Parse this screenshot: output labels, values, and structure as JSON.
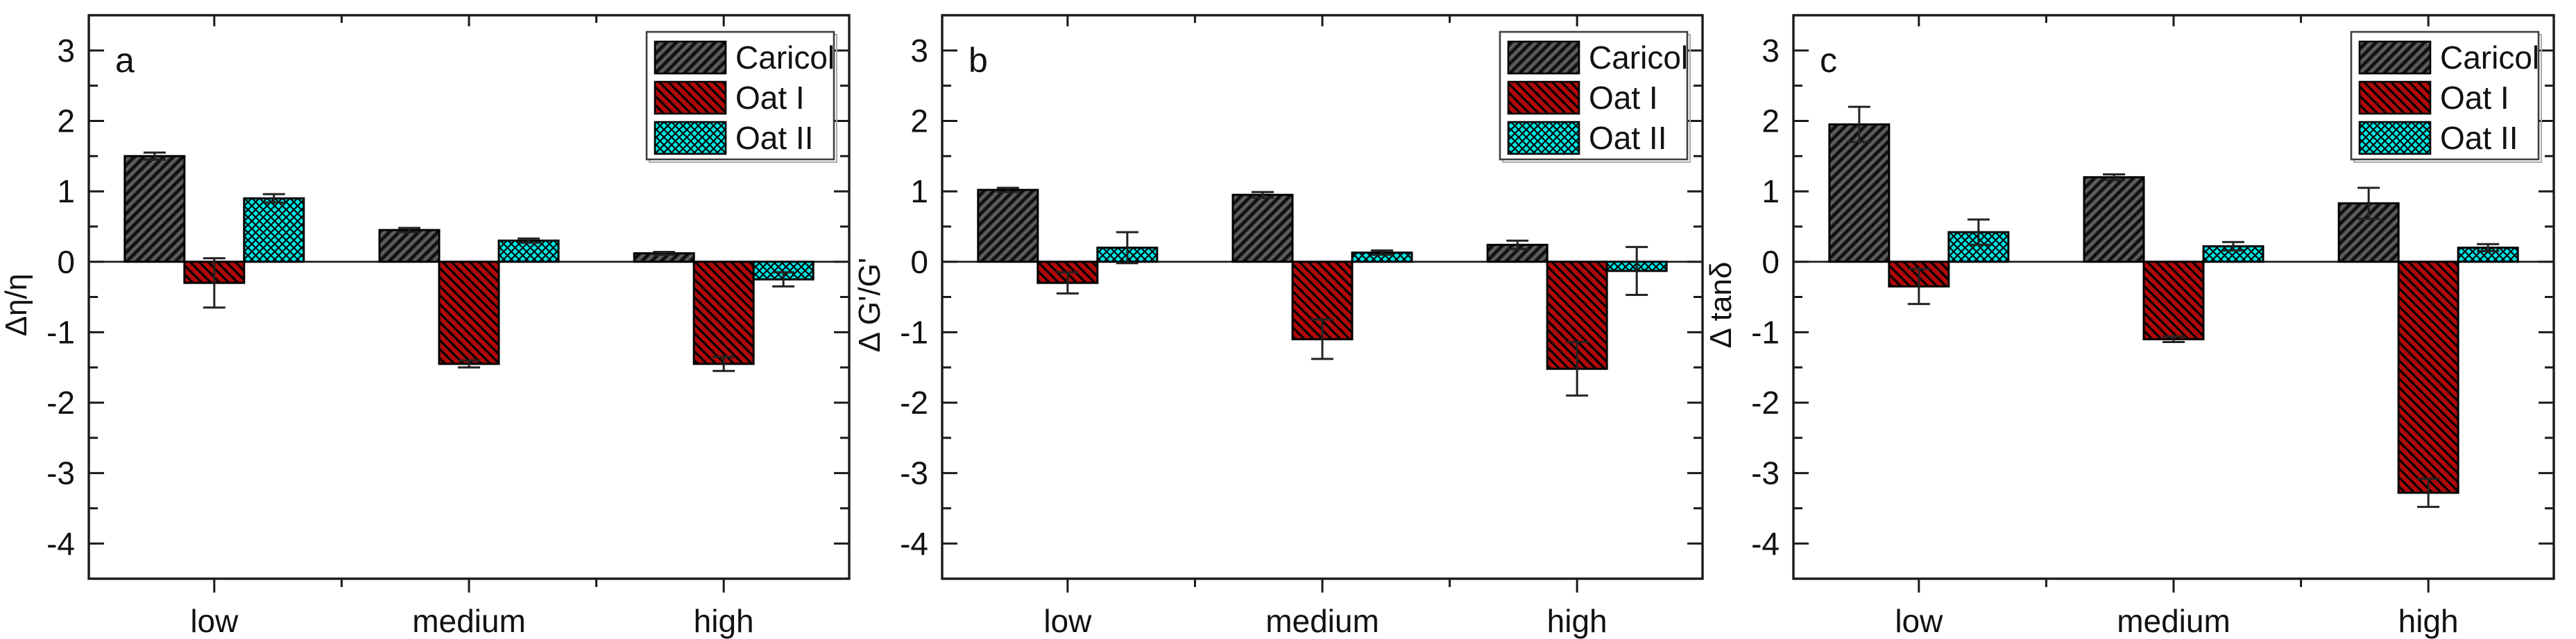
{
  "figure": {
    "background": "#ffffff",
    "description": "Three-panel grouped bar chart comparing Caricol, Oat I and Oat II at low, medium and high levels"
  },
  "series_styles": [
    {
      "name": "Caricol",
      "fill": "#3f3f3f",
      "hatch": "/",
      "pattern": "pat-caricol"
    },
    {
      "name": "Oat I",
      "fill": "#b00909",
      "hatch": "\\",
      "pattern": "pat-oat1"
    },
    {
      "name": "Oat II",
      "fill": "#00e6e6",
      "hatch": "x",
      "pattern": "pat-oat2"
    }
  ],
  "axis_color": "#1a1a1a",
  "error_bar_color": "#222222",
  "chart_data": [
    {
      "type": "bar",
      "panel_label": "a",
      "ylabel": "Δη/η",
      "categories": [
        "low",
        "medium",
        "high"
      ],
      "series": [
        {
          "name": "Caricol",
          "values": [
            1.5,
            0.45,
            0.12
          ],
          "errors": [
            0.05,
            0.03,
            0.02
          ]
        },
        {
          "name": "Oat I",
          "values": [
            -0.3,
            -1.45,
            -1.45
          ],
          "errors": [
            0.35,
            0.05,
            0.1
          ]
        },
        {
          "name": "Oat II",
          "values": [
            0.9,
            0.3,
            -0.25
          ],
          "errors": [
            0.06,
            0.03,
            0.1
          ]
        }
      ],
      "ylim": [
        -4.5,
        3.5
      ],
      "yticks": [
        3,
        2,
        1,
        0,
        -1,
        -2,
        -3,
        -4
      ],
      "grid": false,
      "legend": [
        "Caricol",
        "Oat I",
        "Oat II"
      ],
      "legend_position": "top-right"
    },
    {
      "type": "bar",
      "panel_label": "b",
      "ylabel": "Δ G'/G'",
      "categories": [
        "low",
        "medium",
        "high"
      ],
      "series": [
        {
          "name": "Caricol",
          "values": [
            1.02,
            0.95,
            0.24
          ],
          "errors": [
            0.03,
            0.04,
            0.06
          ]
        },
        {
          "name": "Oat I",
          "values": [
            -0.3,
            -1.1,
            -1.52
          ],
          "errors": [
            0.15,
            0.28,
            0.38
          ]
        },
        {
          "name": "Oat II",
          "values": [
            0.2,
            0.13,
            -0.13
          ],
          "errors": [
            0.22,
            0.03,
            0.34
          ]
        }
      ],
      "ylim": [
        -4.5,
        3.5
      ],
      "yticks": [
        3,
        2,
        1,
        0,
        -1,
        -2,
        -3,
        -4
      ],
      "grid": false,
      "legend": [
        "Caricol",
        "Oat I",
        "Oat II"
      ],
      "legend_position": "top-right"
    },
    {
      "type": "bar",
      "panel_label": "c",
      "ylabel": "Δ tanδ",
      "categories": [
        "low",
        "medium",
        "high"
      ],
      "series": [
        {
          "name": "Caricol",
          "values": [
            1.95,
            1.2,
            0.83
          ],
          "errors": [
            0.25,
            0.04,
            0.22
          ]
        },
        {
          "name": "Oat I",
          "values": [
            -0.35,
            -1.1,
            -3.28
          ],
          "errors": [
            0.25,
            0.04,
            0.2
          ]
        },
        {
          "name": "Oat II",
          "values": [
            0.42,
            0.22,
            0.2
          ],
          "errors": [
            0.18,
            0.06,
            0.05
          ]
        }
      ],
      "ylim": [
        -4.5,
        3.5
      ],
      "yticks": [
        3,
        2,
        1,
        0,
        -1,
        -2,
        -3,
        -4
      ],
      "grid": false,
      "legend": [
        "Caricol",
        "Oat I",
        "Oat II"
      ],
      "legend_position": "top-right"
    }
  ]
}
